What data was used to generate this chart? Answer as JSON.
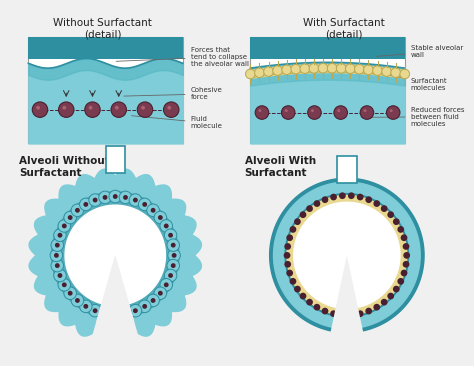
{
  "bg_color": "#f0f0f0",
  "teal_light": "#7ecdd8",
  "teal_mid": "#4db3c0",
  "teal_dark": "#2e8fa0",
  "mol_fill": "#7a3a50",
  "mol_edge": "#4a2030",
  "surf_fill": "#e8d890",
  "surf_edge": "#b8a850",
  "arrow_color": "#aaaaaa",
  "text_dark": "#222222",
  "ann_color": "#333333",
  "title_left": "Without Surfactant\n(detail)",
  "title_right": "With Surfactant\n(detail)",
  "blabel": "Alveoli Without\nSurfactant",
  "brabel": "Alveoli With\nSurfactant",
  "ann_left": [
    "Forces that\ntend to collapse\nthe alveolar wall",
    "Cohesive\nforce",
    "Fluid\nmolecule"
  ],
  "ann_right": [
    "Stable alveolar\nwall",
    "Surfactant\nmolecules",
    "Reduced forces\nbetween fluid\nmolecules"
  ]
}
